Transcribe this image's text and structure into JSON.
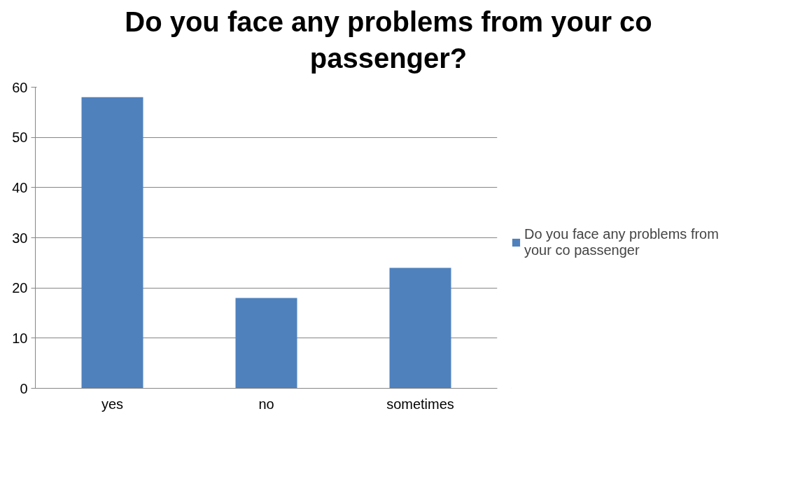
{
  "chart_data": {
    "type": "bar",
    "title": "Do you face any problems from your co passenger?",
    "categories": [
      "yes",
      "no",
      "sometimes"
    ],
    "series": [
      {
        "name": "Do you face any problems from your co passenger",
        "color": "#4f81bd",
        "values": [
          58,
          18,
          24
        ]
      }
    ],
    "ylim": [
      0,
      60
    ],
    "yticks": [
      0,
      10,
      20,
      30,
      40,
      50,
      60
    ],
    "grid": "y",
    "legend": "right"
  }
}
